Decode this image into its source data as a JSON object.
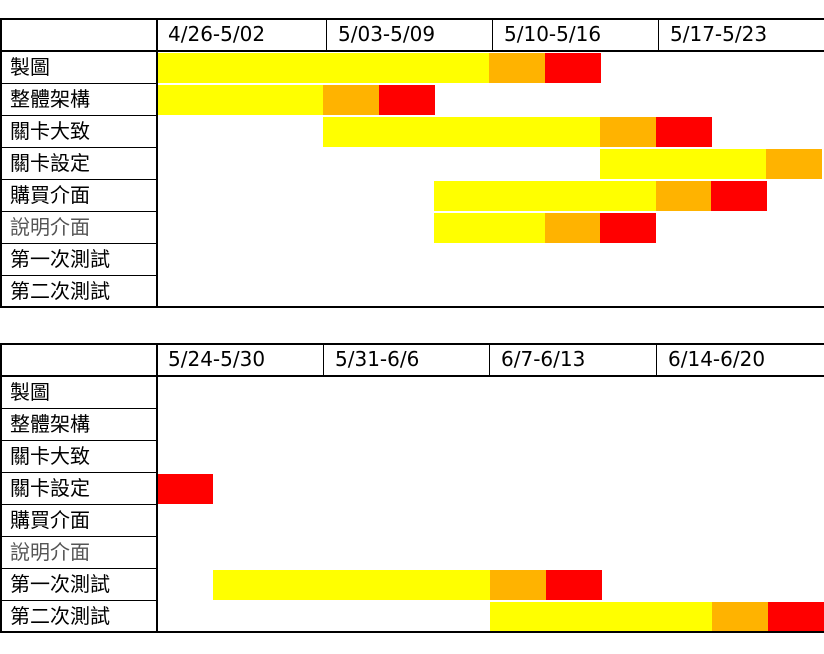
{
  "colors": {
    "plan": "#ffff00",
    "late": "#ffb300",
    "deadline": "#ff0000"
  },
  "chart_data": [
    {
      "type": "table",
      "title": "",
      "weeks": [
        "4/26-5/02",
        "5/03-5/09",
        "5/10-5/16",
        "5/17-5/23"
      ],
      "tasks": [
        "製圖",
        "整體架構",
        "關卡大致",
        "關卡設定",
        "購買介面",
        "說明介面",
        "第一次測試",
        "第二次測試"
      ],
      "bars": [
        {
          "task": "製圖",
          "start": 0,
          "yellow": 6,
          "orange": 1,
          "red": 1
        },
        {
          "task": "整體架構",
          "start": 0,
          "yellow": 3,
          "orange": 1,
          "red": 1
        },
        {
          "task": "關卡大致",
          "start": 3,
          "yellow": 5,
          "orange": 1,
          "red": 1
        },
        {
          "task": "關卡設定",
          "start": 8,
          "yellow": 3,
          "orange": 1,
          "red": 0
        },
        {
          "task": "購買介面",
          "start": 5,
          "yellow": 4,
          "orange": 1,
          "red": 1
        },
        {
          "task": "說明介面",
          "start": 5,
          "yellow": 2,
          "orange": 1,
          "red": 1
        }
      ]
    },
    {
      "type": "table",
      "title": "",
      "weeks": [
        "5/24-5/30",
        "5/31-6/6",
        "6/7-6/13",
        "6/14-6/20"
      ],
      "tasks": [
        "製圖",
        "整體架構",
        "關卡大致",
        "關卡設定",
        "購買介面",
        "說明介面",
        "第一次測試",
        "第二次測試"
      ],
      "bars": [
        {
          "task": "關卡設定",
          "start": 0,
          "yellow": 0,
          "orange": 0,
          "red": 1
        },
        {
          "task": "第一次測試",
          "start": 1,
          "yellow": 5,
          "orange": 1,
          "red": 1
        },
        {
          "task": "第二次測試",
          "start": 6,
          "yellow": 4,
          "orange": 1,
          "red": 1
        }
      ]
    }
  ]
}
